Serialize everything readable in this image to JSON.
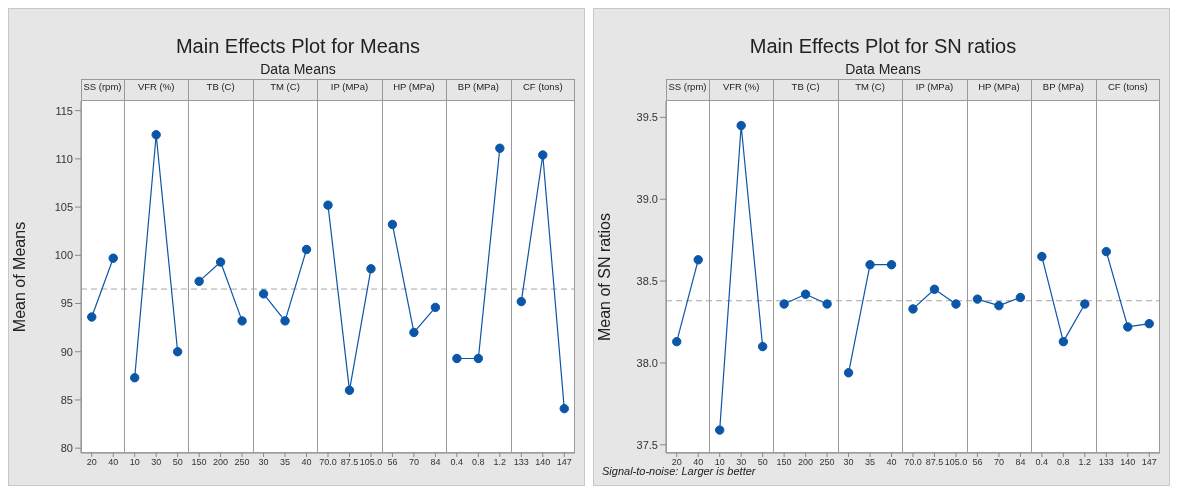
{
  "chart_data": [
    {
      "type": "line",
      "title": "Main Effects Plot for Means",
      "subtitle": "Data Means",
      "ylabel": "Mean of Means",
      "categories": [
        "20",
        "40",
        "10",
        "30",
        "50",
        "150",
        "200",
        "250",
        "30",
        "35",
        "40",
        "70.0",
        "87.5",
        "105.0",
        "56",
        "70",
        "84",
        "0.4",
        "0.8",
        "1.2",
        "133",
        "140",
        "147"
      ],
      "series": [
        {
          "color": "#0b56a8",
          "values": [
            93.6,
            99.7,
            null,
            null,
            null,
            null,
            null,
            null,
            null,
            null,
            null,
            null,
            null,
            null,
            null,
            null,
            null,
            null,
            null,
            null,
            null,
            null,
            null
          ]
        },
        {
          "color": "#0b56a8",
          "values": [
            null,
            null,
            87.3,
            112.5,
            90.0,
            null,
            null,
            null,
            null,
            null,
            null,
            null,
            null,
            null,
            null,
            null,
            null,
            null,
            null,
            null,
            null,
            null,
            null
          ]
        },
        {
          "color": "#0b56a8",
          "values": [
            null,
            null,
            null,
            null,
            null,
            97.3,
            99.3,
            93.2,
            null,
            null,
            null,
            null,
            null,
            null,
            null,
            null,
            null,
            null,
            null,
            null,
            null,
            null,
            null
          ]
        },
        {
          "color": "#0b56a8",
          "values": [
            null,
            null,
            null,
            null,
            null,
            null,
            null,
            null,
            96.0,
            93.2,
            100.6,
            null,
            null,
            null,
            null,
            null,
            null,
            null,
            null,
            null,
            null,
            null,
            null
          ]
        },
        {
          "color": "#0b56a8",
          "values": [
            null,
            null,
            null,
            null,
            null,
            null,
            null,
            null,
            null,
            null,
            null,
            105.2,
            86.0,
            98.6,
            null,
            null,
            null,
            null,
            null,
            null,
            null,
            null,
            null
          ]
        },
        {
          "color": "#0b56a8",
          "values": [
            null,
            null,
            null,
            null,
            null,
            null,
            null,
            null,
            null,
            null,
            null,
            null,
            null,
            null,
            103.2,
            92.0,
            94.6,
            null,
            null,
            null,
            null,
            null,
            null
          ]
        },
        {
          "color": "#0b56a8",
          "values": [
            null,
            null,
            null,
            null,
            null,
            null,
            null,
            null,
            null,
            null,
            null,
            null,
            null,
            null,
            null,
            null,
            null,
            89.3,
            89.3,
            111.1,
            null,
            null,
            null
          ]
        },
        {
          "color": "#0b56a8",
          "values": [
            null,
            null,
            null,
            null,
            null,
            null,
            null,
            null,
            null,
            null,
            null,
            null,
            null,
            null,
            null,
            null,
            null,
            null,
            null,
            null,
            95.2,
            110.4,
            84.1
          ]
        }
      ],
      "ylim": [
        79.5,
        116
      ],
      "yticks": [
        80,
        85,
        90,
        95,
        100,
        105,
        110,
        115
      ],
      "ref_lines": [
        {
          "axis": "y",
          "value": 96.5,
          "color": "#a6a6a6",
          "line_style": "dashed"
        }
      ],
      "marker": "circle",
      "line_style": "solid",
      "grid": false,
      "annotations": [
        "SS (rpm)",
        "VFR (%)",
        "TB (C)",
        "TM (C)",
        "IP (MPa)",
        "HP (MPa)",
        "BP (MPa)",
        "CF (tons)"
      ]
    },
    {
      "type": "line",
      "title": "Main Effects Plot for SN ratios",
      "subtitle": "Data Means",
      "ylabel": "Mean of SN ratios",
      "categories": [
        "20",
        "40",
        "10",
        "30",
        "50",
        "150",
        "200",
        "250",
        "30",
        "35",
        "40",
        "70.0",
        "87.5",
        "105.0",
        "56",
        "70",
        "84",
        "0.4",
        "0.8",
        "1.2",
        "133",
        "140",
        "147"
      ],
      "series": [
        {
          "color": "#0b56a8",
          "values": [
            38.13,
            38.63,
            null,
            null,
            null,
            null,
            null,
            null,
            null,
            null,
            null,
            null,
            null,
            null,
            null,
            null,
            null,
            null,
            null,
            null,
            null,
            null,
            null
          ]
        },
        {
          "color": "#0b56a8",
          "values": [
            null,
            null,
            37.59,
            39.45,
            38.1,
            null,
            null,
            null,
            null,
            null,
            null,
            null,
            null,
            null,
            null,
            null,
            null,
            null,
            null,
            null,
            null,
            null,
            null
          ]
        },
        {
          "color": "#0b56a8",
          "values": [
            null,
            null,
            null,
            null,
            null,
            38.36,
            38.42,
            38.36,
            null,
            null,
            null,
            null,
            null,
            null,
            null,
            null,
            null,
            null,
            null,
            null,
            null,
            null,
            null
          ]
        },
        {
          "color": "#0b56a8",
          "values": [
            null,
            null,
            null,
            null,
            null,
            null,
            null,
            null,
            37.94,
            38.6,
            38.6,
            null,
            null,
            null,
            null,
            null,
            null,
            null,
            null,
            null,
            null,
            null,
            null
          ]
        },
        {
          "color": "#0b56a8",
          "values": [
            null,
            null,
            null,
            null,
            null,
            null,
            null,
            null,
            null,
            null,
            null,
            38.33,
            38.45,
            38.36,
            null,
            null,
            null,
            null,
            null,
            null,
            null,
            null,
            null
          ]
        },
        {
          "color": "#0b56a8",
          "values": [
            null,
            null,
            null,
            null,
            null,
            null,
            null,
            null,
            null,
            null,
            null,
            null,
            null,
            null,
            38.39,
            38.35,
            38.4,
            null,
            null,
            null,
            null,
            null,
            null
          ]
        },
        {
          "color": "#0b56a8",
          "values": [
            null,
            null,
            null,
            null,
            null,
            null,
            null,
            null,
            null,
            null,
            null,
            null,
            null,
            null,
            null,
            null,
            null,
            38.65,
            38.13,
            38.36,
            null,
            null,
            null
          ]
        },
        {
          "color": "#0b56a8",
          "values": [
            null,
            null,
            null,
            null,
            null,
            null,
            null,
            null,
            null,
            null,
            null,
            null,
            null,
            null,
            null,
            null,
            null,
            null,
            null,
            null,
            38.68,
            38.22,
            38.24
          ]
        }
      ],
      "ylim": [
        37.45,
        39.6
      ],
      "yticks": [
        37.5,
        {
          "value": 38,
          "label": "38.0"
        },
        38.5,
        {
          "value": 39,
          "label": "39.0"
        },
        39.5
      ],
      "ref_lines": [
        {
          "axis": "y",
          "value": 38.38,
          "color": "#a6a6a6",
          "line_style": "dashed"
        }
      ],
      "marker": "circle",
      "line_style": "solid",
      "grid": false,
      "annotations": [
        "SS (rpm)",
        "VFR (%)",
        "TB (C)",
        "TM (C)",
        "IP (MPa)",
        "HP (MPa)",
        "BP (MPa)",
        "CF (tons)",
        "Signal-to-noise: Larger is better"
      ]
    }
  ]
}
